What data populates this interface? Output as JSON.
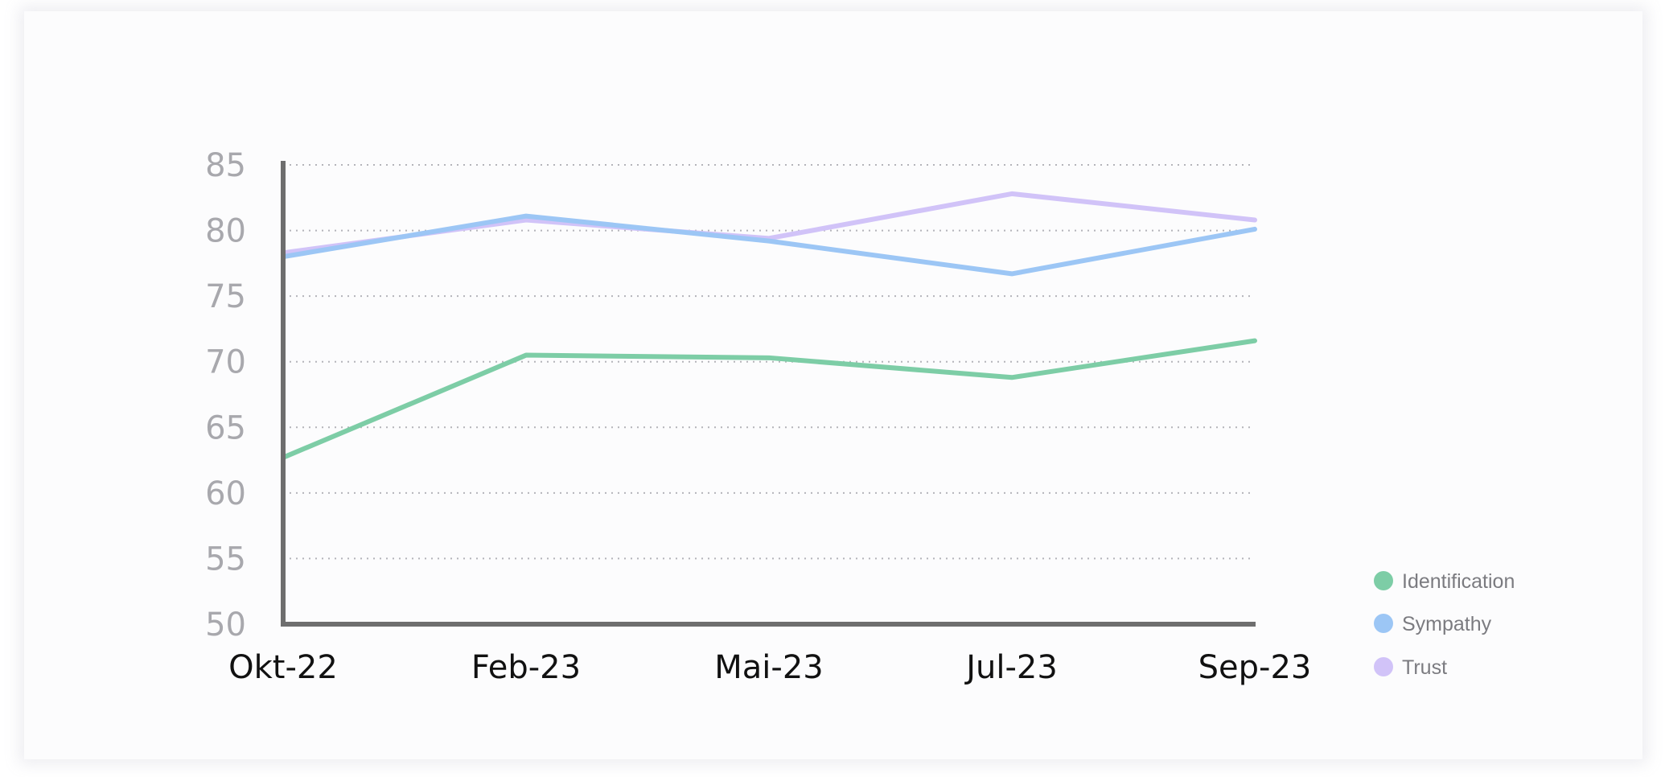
{
  "chart_data": {
    "type": "line",
    "categories": [
      "Okt-22",
      "Feb-23",
      "Mai-23",
      "Jul-23",
      "Sep-23"
    ],
    "ylim": [
      50,
      85
    ],
    "yticks": [
      50,
      55,
      60,
      65,
      70,
      75,
      80,
      85
    ],
    "grid": "horizontal-dotted",
    "legend_position": "bottom-right",
    "series": [
      {
        "name": "Identification",
        "color": "#7dcda6",
        "values": [
          62.7,
          70.5,
          70.3,
          68.8,
          71.6
        ]
      },
      {
        "name": "Sympathy",
        "color": "#9cc6f5",
        "values": [
          78.0,
          81.1,
          79.2,
          76.7,
          80.1
        ]
      },
      {
        "name": "Trust",
        "color": "#d1c3f8",
        "values": [
          78.3,
          80.8,
          79.4,
          82.8,
          80.8
        ]
      }
    ]
  }
}
